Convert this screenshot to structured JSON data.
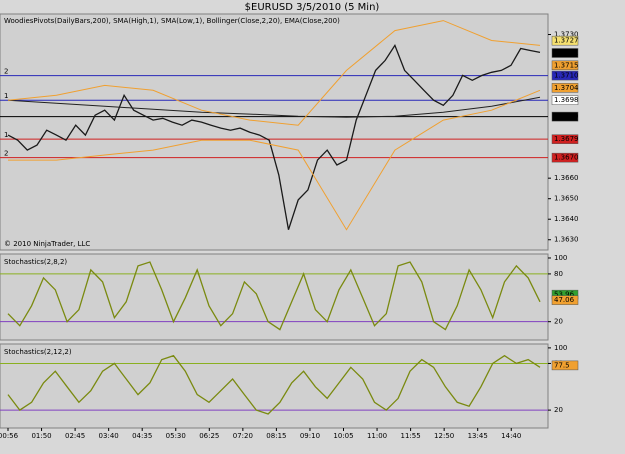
{
  "title": "$EURUSD  3/5/2010 (5 Min)",
  "x_labels": [
    "00:56",
    "01:50",
    "02:45",
    "03:40",
    "04:35",
    "05:30",
    "06:25",
    "07:20",
    "08:15",
    "09:10",
    "10:05",
    "11:00",
    "11:55",
    "12:50",
    "13:45",
    "14:40"
  ],
  "chart_data": [
    {
      "type": "line",
      "subtitle": "WoodiesPivots(DailyBars,200), SMA(High,1), SMA(Low,1), Bollinger(Close,2,20), EMA(Close,200)",
      "copyright": "© 2010 NinjaTrader, LLC",
      "ylim": [
        1.3625,
        1.374
      ],
      "yticks": [
        {
          "value": 1.363,
          "label": "1.3630"
        },
        {
          "value": 1.364,
          "label": "1.3640"
        },
        {
          "value": 1.365,
          "label": "1.3650"
        },
        {
          "value": 1.366,
          "label": "1.3660"
        },
        {
          "value": 1.373,
          "label": "1.3730"
        }
      ],
      "series": [
        {
          "color": "#1a1a1a",
          "values": [
            1.3681,
            1.36785,
            1.36737,
            1.36761,
            1.36834,
            1.3681,
            1.36785,
            1.36858,
            1.3681,
            1.36907,
            1.36931,
            1.36883,
            1.37004,
            1.36931,
            1.36907,
            1.36883,
            1.36892,
            1.36873,
            1.36858,
            1.36883,
            1.36873,
            1.36858,
            1.36844,
            1.36834,
            1.36844,
            1.36824,
            1.3681,
            1.36785,
            1.36616,
            1.36349,
            1.36494,
            1.36543,
            1.36688,
            1.36737,
            1.36664,
            1.36688,
            1.36883,
            1.37004,
            1.37125,
            1.37174,
            1.37247,
            1.37125,
            1.37077,
            1.37028,
            1.3698,
            1.36955,
            1.37004,
            1.37101,
            1.37077,
            1.37101,
            1.37116,
            1.37125,
            1.3715,
            1.37232,
            1.37222,
            1.37213
          ]
        },
        {
          "color": "#222222",
          "values": [
            1.3698,
            1.36965,
            1.3695,
            1.36936,
            1.36921,
            1.36912,
            1.36902,
            1.36897,
            1.36902,
            1.36921,
            1.3695,
            1.36994
          ]
        },
        {
          "color": "#f0a030",
          "values": [
            1.3698,
            1.37004,
            1.37052,
            1.37028,
            1.36931,
            1.36883,
            1.36858,
            1.37125,
            1.37319,
            1.37368,
            1.37271,
            1.37247
          ]
        },
        {
          "color": "#f0a030",
          "values": [
            1.36688,
            1.36688,
            1.36713,
            1.36737,
            1.36785,
            1.36785,
            1.36737,
            1.36349,
            1.36737,
            1.36883,
            1.36931,
            1.37028
          ]
        }
      ],
      "pivots": [
        {
          "label": "2",
          "value": 1.371,
          "color": "#2828b8"
        },
        {
          "label": "1",
          "value": 1.3698,
          "color": "#2828b8"
        },
        {
          "value": 1.369,
          "color": "#000000"
        },
        {
          "label": "1",
          "value": 1.3679,
          "color": "#d02020"
        },
        {
          "label": "2",
          "value": 1.367,
          "color": "#d02020"
        }
      ],
      "price_markers": [
        {
          "value": 1.3727,
          "label": "1.3727",
          "color": "#f5e070",
          "text_color": "#000000"
        },
        {
          "value": 1.3721,
          "label": "1.3721",
          "color": "#000000",
          "text_color": "#ffffff"
        },
        {
          "value": 1.3715,
          "label": "1.3715",
          "color": "#f0a030",
          "text_color": "#000000"
        },
        {
          "value": 1.371,
          "label": "1.3710",
          "color": "#2828b8",
          "text_color": "#ffffff"
        },
        {
          "value": 1.3704,
          "label": "1.3704",
          "color": "#f0a030",
          "text_color": "#000000"
        },
        {
          "value": 1.3698,
          "label": "1.3698",
          "color": "#ffffff",
          "text_color": "#000000"
        },
        {
          "value": 1.369,
          "label": "1.3690",
          "color": "#000000",
          "text_color": "#ffffff"
        },
        {
          "value": 1.3679,
          "label": "1.3679",
          "color": "#d02020",
          "text_color": "#ffffff"
        },
        {
          "value": 1.367,
          "label": "1.3670",
          "color": "#d02020",
          "text_color": "#ffffff"
        }
      ]
    },
    {
      "type": "line",
      "title": "Stochastics(2,8,2)",
      "ylim": [
        -3,
        105
      ],
      "yticks": [
        100,
        80,
        20
      ],
      "levels": [
        {
          "value": 80,
          "color": "#8ab020"
        },
        {
          "value": 20,
          "color": "#8040c0"
        }
      ],
      "series": [
        {
          "color": "#7a8a10",
          "values": [
            30,
            15,
            40,
            75,
            60,
            20,
            35,
            85,
            70,
            25,
            45,
            90,
            95,
            60,
            20,
            50,
            85,
            40,
            15,
            30,
            70,
            55,
            20,
            10,
            45,
            80,
            35,
            20,
            60,
            85,
            50,
            15,
            30,
            90,
            95,
            70,
            20,
            10,
            40,
            85,
            60,
            25,
            70,
            90,
            75,
            45
          ]
        }
      ],
      "price_markers": [
        {
          "value": 53.96,
          "label": "53.96",
          "color": "#30a030",
          "text_color": "#000000"
        },
        {
          "value": 47.06,
          "label": "47.06",
          "color": "#f0a030",
          "text_color": "#000000"
        }
      ]
    },
    {
      "type": "line",
      "title": "Stochastics(2,12,2)",
      "ylim": [
        -3,
        105
      ],
      "yticks": [
        100,
        80,
        20
      ],
      "levels": [
        {
          "value": 80,
          "color": "#8ab020"
        },
        {
          "value": 20,
          "color": "#8040c0"
        }
      ],
      "series": [
        {
          "color": "#7a8a10",
          "values": [
            40,
            20,
            30,
            55,
            70,
            50,
            30,
            45,
            70,
            80,
            60,
            40,
            55,
            85,
            90,
            70,
            40,
            30,
            45,
            60,
            40,
            20,
            15,
            30,
            55,
            70,
            50,
            35,
            55,
            75,
            60,
            30,
            20,
            35,
            70,
            85,
            75,
            50,
            30,
            25,
            50,
            80,
            90,
            80,
            85,
            75
          ]
        }
      ],
      "price_markers": [
        {
          "value": 77.5,
          "label": "77.5",
          "color": "#f0a030",
          "text_color": "#000000"
        }
      ]
    }
  ]
}
